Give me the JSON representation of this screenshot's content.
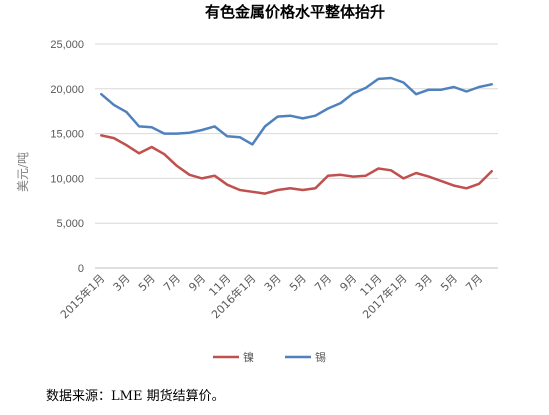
{
  "chart_data": {
    "type": "line",
    "title": "有色金属价格水平整体抬升",
    "ylabel": "美元/吨",
    "xlabel": "",
    "ylim": [
      0,
      25000
    ],
    "yticks": [
      0,
      5000,
      10000,
      15000,
      20000,
      25000
    ],
    "ytick_labels": [
      "0",
      "5,000",
      "10,000",
      "15,000",
      "20,000",
      "25,000"
    ],
    "x_tick_labels": [
      "2015年1月",
      "3月",
      "5月",
      "7月",
      "9月",
      "11月",
      "2016年1月",
      "3月",
      "5月",
      "7月",
      "9月",
      "11月",
      "2017年1月",
      "3月",
      "5月",
      "7月"
    ],
    "x": [
      "2015-01",
      "2015-02",
      "2015-03",
      "2015-04",
      "2015-05",
      "2015-06",
      "2015-07",
      "2015-08",
      "2015-09",
      "2015-10",
      "2015-11",
      "2015-12",
      "2016-01",
      "2016-02",
      "2016-03",
      "2016-04",
      "2016-05",
      "2016-06",
      "2016-07",
      "2016-08",
      "2016-09",
      "2016-10",
      "2016-11",
      "2016-12",
      "2017-01",
      "2017-02",
      "2017-03",
      "2017-04",
      "2017-05",
      "2017-06",
      "2017-07",
      "2017-08"
    ],
    "grid": true,
    "legend_position": "bottom",
    "series": [
      {
        "name": "镍",
        "color": "#c0504d",
        "values": [
          14800,
          14500,
          13700,
          12800,
          13500,
          12700,
          11400,
          10400,
          10000,
          10300,
          9300,
          8700,
          8500,
          8300,
          8700,
          8900,
          8700,
          8900,
          10300,
          10400,
          10200,
          10300,
          11100,
          10900,
          10000,
          10600,
          10200,
          9700,
          9200,
          8900,
          9400,
          10800
        ]
      },
      {
        "name": "锡",
        "color": "#4f81bd",
        "values": [
          19400,
          18200,
          17400,
          15800,
          15700,
          15000,
          15000,
          15100,
          15400,
          15800,
          14700,
          14600,
          13800,
          15800,
          16900,
          17000,
          16700,
          17000,
          17800,
          18400,
          19500,
          20100,
          21100,
          21200,
          20700,
          19400,
          19900,
          19900,
          20200,
          19700,
          20200,
          20500
        ]
      }
    ]
  },
  "footer": {
    "source": "数据来源：LME 期货结算价。"
  }
}
